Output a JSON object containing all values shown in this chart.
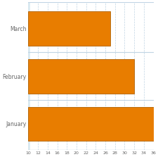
{
  "categories": [
    "January",
    "February",
    "March"
  ],
  "values": [
    26,
    22,
    17
  ],
  "bar_color": "#E87D00",
  "bar_edge_color": "#B06000",
  "background_color": "#FFFFFF",
  "plot_bg_color": "#FFFFFF",
  "left_panel_color": "#D8E8F0",
  "xlim": [
    10,
    36
  ],
  "xstart": 10,
  "xticks": [
    10,
    12,
    14,
    16,
    18,
    20,
    22,
    24,
    26,
    28,
    30,
    32,
    34,
    36
  ],
  "grid_color": "#C0D4E4",
  "tick_label_color": "#666666",
  "ylabel_color": "#666666",
  "bar_height": 0.72,
  "figsize": [
    2.26,
    2.23
  ],
  "dpi": 100
}
